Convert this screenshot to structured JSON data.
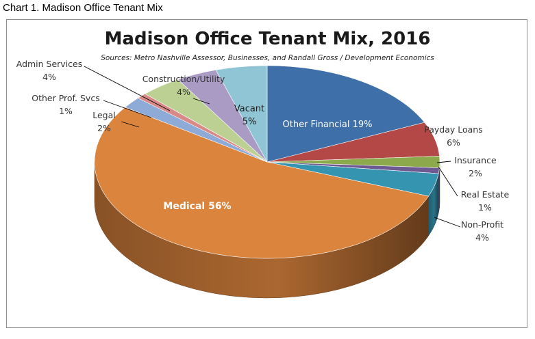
{
  "caption": "Chart 1. Madison Office Tenant Mix",
  "chart_data": {
    "type": "pie",
    "title": "Madison Office Tenant Mix, 2016",
    "subtitle": "Sources: Metro Nashville Assessor, Businesses, and Randall Gross / Development Economics",
    "slices": [
      {
        "name": "Other Financial",
        "value": 19,
        "label": "Other Financial 19%",
        "color": "#3f6fa8"
      },
      {
        "name": "Payday Loans",
        "value": 6,
        "label": "6%",
        "color": "#b34846"
      },
      {
        "name": "Insurance",
        "value": 2,
        "label": "2%",
        "color": "#8ca94b"
      },
      {
        "name": "Real Estate",
        "value": 1,
        "label": "1%",
        "color": "#6e5a93"
      },
      {
        "name": "Non-Profit",
        "value": 4,
        "label": "4%",
        "color": "#3594b0"
      },
      {
        "name": "Medical",
        "value": 56,
        "label": "Medical 56%",
        "color": "#db843d"
      },
      {
        "name": "Legal",
        "value": 2,
        "label": "2%",
        "color": "#8eaad6"
      },
      {
        "name": "Other Prof. Svcs",
        "value": 1,
        "label": "1%",
        "color": "#d88a88"
      },
      {
        "name": "Admin Services",
        "value": 4,
        "label": "4%",
        "color": "#bcd094"
      },
      {
        "name": "Construction/Utility",
        "value": 4,
        "label": "4%",
        "color": "#a99bc3"
      },
      {
        "name": "Vacant",
        "value": 5,
        "label": "5%",
        "color": "#90c5d6"
      }
    ]
  }
}
